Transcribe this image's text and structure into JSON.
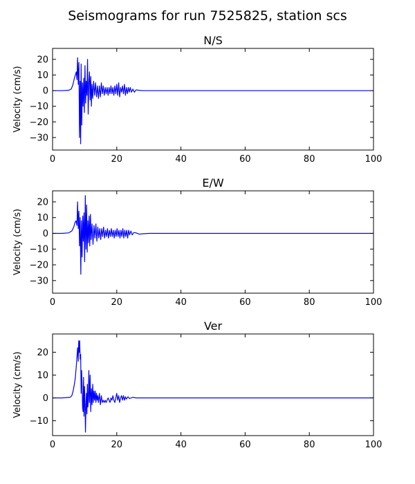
{
  "chart_data": {
    "title": "Seismograms for run 7525825, station scs",
    "panels": [
      {
        "type": "line",
        "title": "N/S",
        "ylabel": "Velocity (cm/s)",
        "xlabel": "",
        "xlim": [
          0,
          100
        ],
        "ylim": [
          -38,
          27
        ],
        "xticks": [
          0,
          20,
          40,
          60,
          80,
          100
        ],
        "yticks": [
          -30,
          -20,
          -10,
          0,
          10,
          20
        ],
        "color": "#0000ff",
        "x": [
          0,
          3,
          5,
          5.8,
          6.3,
          6.8,
          7.1,
          7.4,
          7.6,
          7.8,
          8.0,
          8.2,
          8.4,
          8.6,
          8.75,
          8.9,
          9.1,
          9.3,
          9.5,
          9.7,
          9.9,
          10.1,
          10.3,
          10.5,
          10.7,
          10.9,
          11.1,
          11.3,
          11.5,
          11.7,
          11.9,
          12.1,
          12.3,
          12.5,
          12.8,
          13.1,
          13.4,
          13.7,
          14.0,
          14.3,
          14.6,
          14.9,
          15.2,
          15.5,
          15.8,
          16.1,
          16.4,
          16.7,
          17.0,
          17.3,
          17.6,
          17.9,
          18.2,
          18.5,
          18.8,
          19.1,
          19.4,
          19.7,
          20.0,
          20.3,
          20.6,
          20.9,
          21.2,
          21.5,
          21.8,
          22.1,
          22.4,
          22.7,
          23.0,
          23.3,
          23.6,
          23.9,
          24.2,
          24.6,
          25.0,
          25.5,
          26.0,
          27.0,
          28.0,
          30,
          40,
          60,
          80,
          100
        ],
        "y": [
          0,
          0,
          0.2,
          1.0,
          3.5,
          8,
          10,
          12,
          7,
          21,
          4,
          18,
          -30,
          6,
          -34,
          17,
          -22,
          5,
          -10,
          8,
          -14,
          16,
          -8,
          6,
          -3,
          20,
          -15,
          5,
          12,
          -6,
          9,
          -10,
          4,
          -5,
          6,
          -3,
          5,
          -4,
          3,
          -5,
          3,
          -4,
          5,
          -2,
          3,
          -3,
          2,
          -2,
          2,
          -3,
          2,
          -2,
          3,
          -2,
          2,
          -3,
          3,
          -2,
          4,
          -3,
          5,
          -4,
          2,
          -1,
          3,
          -2,
          4,
          -3,
          2,
          -2,
          2,
          -1,
          2,
          -1,
          1,
          -1,
          0.5,
          0.2,
          0,
          0,
          0,
          0,
          0,
          0
        ]
      },
      {
        "type": "line",
        "title": "E/W",
        "ylabel": "Velocity (cm/s)",
        "xlabel": "",
        "xlim": [
          0,
          100
        ],
        "ylim": [
          -38,
          27
        ],
        "xticks": [
          0,
          20,
          40,
          60,
          80,
          100
        ],
        "yticks": [
          -30,
          -20,
          -10,
          0,
          10,
          20
        ],
        "color": "#0000ff",
        "x": [
          0,
          3,
          5,
          6.0,
          6.6,
          7.0,
          7.3,
          7.6,
          7.8,
          8.0,
          8.2,
          8.4,
          8.6,
          8.8,
          9.0,
          9.2,
          9.4,
          9.6,
          9.8,
          10.0,
          10.2,
          10.4,
          10.6,
          10.8,
          11.0,
          11.2,
          11.4,
          11.6,
          11.8,
          12.0,
          12.3,
          12.6,
          12.9,
          13.2,
          13.5,
          13.8,
          14.1,
          14.4,
          14.7,
          15.0,
          15.3,
          15.6,
          15.9,
          16.2,
          16.5,
          16.8,
          17.1,
          17.4,
          17.7,
          18.0,
          18.3,
          18.6,
          18.9,
          19.2,
          19.5,
          19.8,
          20.1,
          20.4,
          20.7,
          21.0,
          21.3,
          21.6,
          21.9,
          22.2,
          22.5,
          22.8,
          23.1,
          23.4,
          23.7,
          24.0,
          24.4,
          24.8,
          25.3,
          26.0,
          27.0,
          28.0,
          30,
          40,
          60,
          80,
          100
        ],
        "y": [
          0,
          0,
          0.3,
          1.5,
          4,
          7,
          8,
          5,
          20,
          3,
          14,
          -8,
          10,
          -26,
          8,
          -15,
          11,
          -5,
          13,
          -18,
          24,
          -10,
          18,
          -12,
          8,
          -6,
          11,
          -8,
          12,
          -4,
          6,
          -7,
          5,
          -3,
          6,
          -5,
          4,
          -3,
          3,
          -4,
          3,
          -2,
          4,
          -3,
          2,
          -2,
          3,
          -3,
          2,
          -2,
          3,
          -2,
          2,
          -3,
          2,
          -2,
          3,
          -2,
          2,
          -3,
          2,
          -2,
          3,
          -3,
          2,
          -2,
          2,
          -3,
          2,
          -1,
          1.5,
          -1,
          0.5,
          0.3,
          -0.5,
          -0.3,
          0,
          0,
          0,
          0,
          0
        ]
      },
      {
        "type": "line",
        "title": "Ver",
        "ylabel": "Velocity (cm/s)",
        "xlabel": "",
        "xlim": [
          0,
          100
        ],
        "ylim": [
          -16.5,
          28
        ],
        "xticks": [
          0,
          20,
          40,
          60,
          80,
          100
        ],
        "yticks": [
          -10,
          0,
          10,
          20
        ],
        "color": "#0000ff",
        "x": [
          0,
          3,
          5.5,
          6.0,
          6.4,
          6.8,
          7.1,
          7.4,
          7.6,
          7.8,
          8.0,
          8.15,
          8.3,
          8.45,
          8.6,
          8.75,
          8.9,
          9.05,
          9.2,
          9.35,
          9.5,
          9.65,
          9.8,
          9.95,
          10.1,
          10.25,
          10.4,
          10.55,
          10.7,
          10.85,
          11.0,
          11.15,
          11.3,
          11.5,
          11.7,
          11.9,
          12.1,
          12.3,
          12.5,
          12.7,
          12.9,
          13.1,
          13.3,
          13.5,
          13.7,
          13.9,
          14.1,
          14.3,
          14.6,
          14.9,
          15.2,
          15.5,
          15.8,
          16.1,
          16.4,
          16.7,
          17.0,
          17.3,
          17.6,
          17.9,
          18.2,
          18.5,
          18.8,
          19.1,
          19.4,
          19.7,
          20.0,
          20.3,
          20.6,
          20.9,
          21.2,
          21.5,
          21.8,
          22.1,
          22.4,
          22.7,
          23.0,
          23.5,
          24.0,
          25.0,
          26.0,
          28.0,
          30,
          40,
          60,
          80,
          100
        ],
        "y": [
          0,
          0,
          0.3,
          1.0,
          3,
          6,
          9,
          14,
          18,
          22,
          16,
          25,
          20,
          25,
          17,
          19,
          2,
          12,
          6,
          -4,
          -6,
          9,
          -8,
          5,
          -2,
          -15,
          -4,
          2,
          -7,
          6,
          -4,
          -1,
          12,
          -2,
          10,
          -6,
          4,
          -3,
          6,
          -2,
          3,
          -1,
          3,
          -2,
          2,
          -1,
          1,
          -2,
          2,
          -3,
          1,
          -2,
          -1,
          -2,
          -1,
          -2,
          -1,
          0,
          -1,
          -2,
          0,
          -1,
          1,
          -1,
          -2,
          0,
          2,
          -1,
          1,
          -2,
          0,
          1,
          -1,
          1,
          -1,
          0.5,
          -0.5,
          0.5,
          -0.3,
          0.3,
          0,
          0,
          0,
          0,
          0,
          0,
          0
        ]
      }
    ]
  }
}
